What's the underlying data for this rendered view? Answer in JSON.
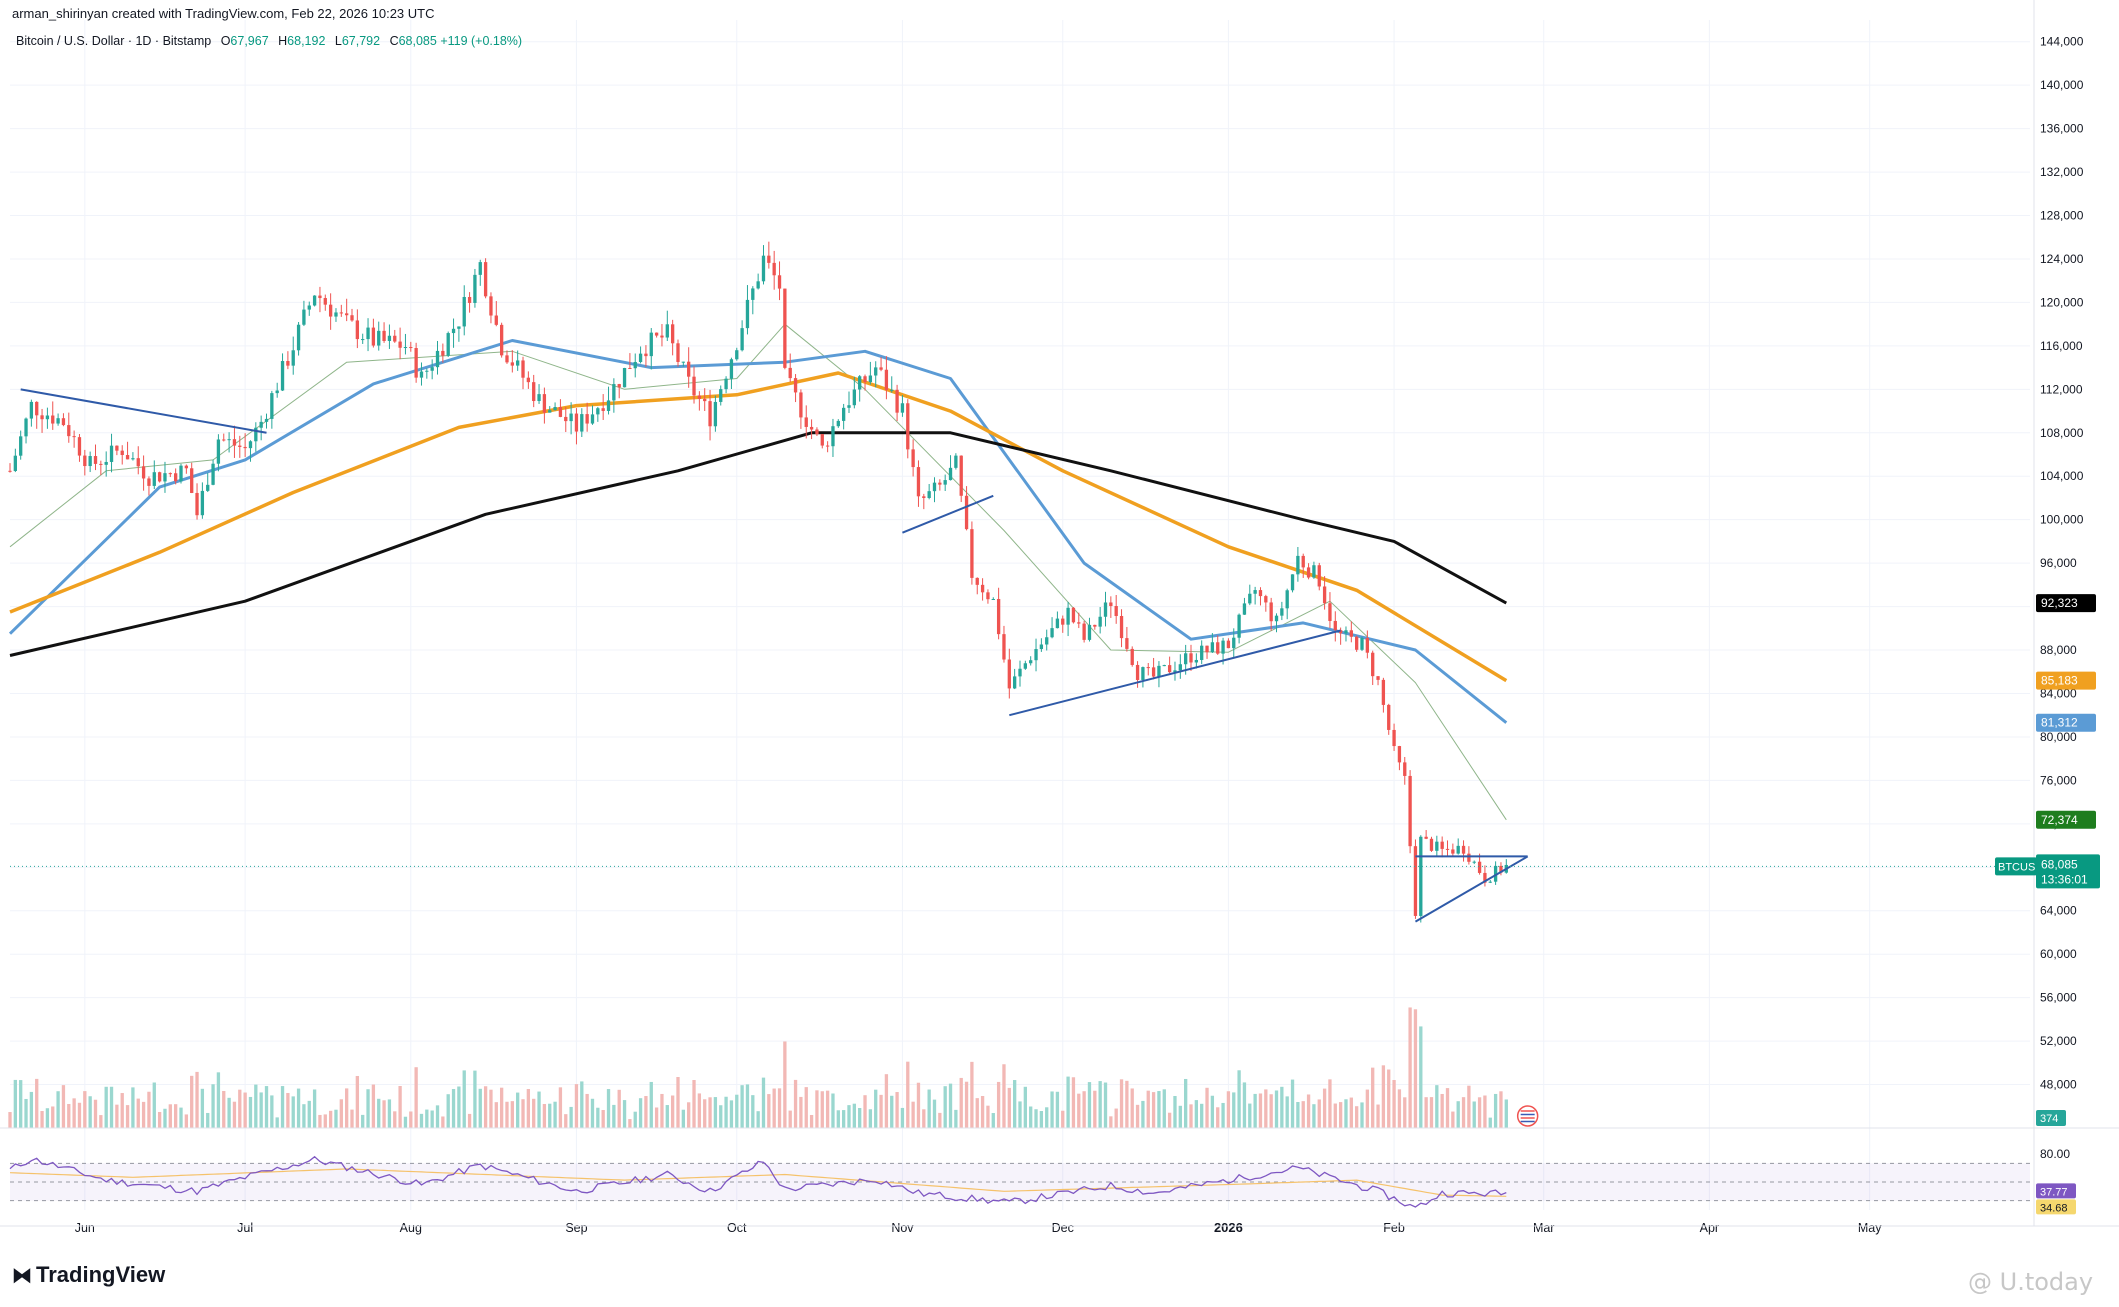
{
  "header": {
    "credit": "arman_shirinyan created with TradingView.com, Feb 22, 2026 10:23 UTC",
    "instrument": "Bitcoin / U.S. Dollar · 1D · Bitstamp",
    "o_label": "O",
    "o_value": "67,967",
    "h_label": "H",
    "h_value": "68,192",
    "l_label": "L",
    "l_value": "67,792",
    "c_label": "C",
    "c_value": "68,085",
    "change": "+119 (+0.18%)"
  },
  "branding": {
    "logo_text": "TradingView",
    "watermark": "@ U.today"
  },
  "colors": {
    "up": "#26a69a",
    "down": "#ef5350",
    "vol_up": "#9ad7cf",
    "vol_down": "#f2b8b5",
    "ma20": "#8fb58a",
    "ma50": "#5b9bd5",
    "ma100": "#f0a020",
    "ma200": "#111111",
    "trendline": "#2f5aa8",
    "rsi": "#7e57c2",
    "rsi_ma": "#f5c26b"
  },
  "chart_data": {
    "type": "candlestick",
    "title": "Bitcoin / U.S. Dollar · 1D · Bitstamp",
    "price_ylim": [
      44000,
      146000
    ],
    "price_ticks": [
      "48,000",
      "52,000",
      "56,000",
      "60,000",
      "64,000",
      "68,000",
      "72,000",
      "76,000",
      "80,000",
      "84,000",
      "88,000",
      "92,000",
      "96,000",
      "100,000",
      "104,000",
      "108,000",
      "112,000",
      "116,000",
      "120,000",
      "124,000",
      "128,000",
      "132,000",
      "136,000",
      "140,000",
      "144,000"
    ],
    "x_ticks": [
      "Jun",
      "Jul",
      "Aug",
      "Sep",
      "Oct",
      "Nov",
      "Dec",
      "2026",
      "Feb",
      "Mar",
      "Apr",
      "May"
    ],
    "x_range": [
      "2025-05-18",
      "2026-05-31"
    ],
    "last_date": "2026-02-22",
    "price_anchors": [
      [
        "2025-05-18",
        104500
      ],
      [
        "2025-05-22",
        110500
      ],
      [
        "2025-05-28",
        109000
      ],
      [
        "2025-06-02",
        105000
      ],
      [
        "2025-06-08",
        106500
      ],
      [
        "2025-06-13",
        104000
      ],
      [
        "2025-06-20",
        104500
      ],
      [
        "2025-06-22",
        100500
      ],
      [
        "2025-06-26",
        107500
      ],
      [
        "2025-07-01",
        106500
      ],
      [
        "2025-07-04",
        109000
      ],
      [
        "2025-07-10",
        116000
      ],
      [
        "2025-07-14",
        121000
      ],
      [
        "2025-07-20",
        118000
      ],
      [
        "2025-07-25",
        116500
      ],
      [
        "2025-07-31",
        116000
      ],
      [
        "2025-08-03",
        113000
      ],
      [
        "2025-08-10",
        118500
      ],
      [
        "2025-08-14",
        123500
      ],
      [
        "2025-08-18",
        116000
      ],
      [
        "2025-08-25",
        111000
      ],
      [
        "2025-09-01",
        108500
      ],
      [
        "2025-09-07",
        111500
      ],
      [
        "2025-09-13",
        115800
      ],
      [
        "2025-09-18",
        117000
      ],
      [
        "2025-09-22",
        112500
      ],
      [
        "2025-09-26",
        109500
      ],
      [
        "2025-10-01",
        116500
      ],
      [
        "2025-10-06",
        124000
      ],
      [
        "2025-10-09",
        121500
      ],
      [
        "2025-10-10",
        113000
      ],
      [
        "2025-10-17",
        106500
      ],
      [
        "2025-10-21",
        110500
      ],
      [
        "2025-10-27",
        114000
      ],
      [
        "2025-11-01",
        110000
      ],
      [
        "2025-11-04",
        101500
      ],
      [
        "2025-11-08",
        103000
      ],
      [
        "2025-11-11",
        105000
      ],
      [
        "2025-11-14",
        95000
      ],
      [
        "2025-11-18",
        92500
      ],
      [
        "2025-11-21",
        84500
      ],
      [
        "2025-11-25",
        87500
      ],
      [
        "2025-12-02",
        91500
      ],
      [
        "2025-12-05",
        89000
      ],
      [
        "2025-12-10",
        92500
      ],
      [
        "2025-12-15",
        86000
      ],
      [
        "2025-12-18",
        85500
      ],
      [
        "2025-12-25",
        87500
      ],
      [
        "2026-01-01",
        88500
      ],
      [
        "2026-01-06",
        93500
      ],
      [
        "2026-01-10",
        90500
      ],
      [
        "2026-01-14",
        96500
      ],
      [
        "2026-01-18",
        94500
      ],
      [
        "2026-01-21",
        89500
      ],
      [
        "2026-01-26",
        88500
      ],
      [
        "2026-01-29",
        85000
      ],
      [
        "2026-02-01",
        78500
      ],
      [
        "2026-02-03",
        76000
      ],
      [
        "2026-02-05",
        64000
      ],
      [
        "2026-02-06",
        70500
      ],
      [
        "2026-02-10",
        69500
      ],
      [
        "2026-02-14",
        69800
      ],
      [
        "2026-02-18",
        67000
      ],
      [
        "2026-02-22",
        68085
      ]
    ],
    "ma_series": [
      {
        "period": 20,
        "last": "72,374",
        "points": [
          [
            "2025-05-18",
            97500
          ],
          [
            "2025-06-05",
            104500
          ],
          [
            "2025-06-25",
            105500
          ],
          [
            "2025-07-20",
            114500
          ],
          [
            "2025-08-20",
            115500
          ],
          [
            "2025-09-10",
            112000
          ],
          [
            "2025-10-01",
            113000
          ],
          [
            "2025-10-10",
            118000
          ],
          [
            "2025-10-25",
            112000
          ],
          [
            "2025-11-20",
            99000
          ],
          [
            "2025-12-10",
            88000
          ],
          [
            "2026-01-01",
            87800
          ],
          [
            "2026-01-20",
            92500
          ],
          [
            "2026-02-05",
            85000
          ],
          [
            "2026-02-22",
            72374
          ]
        ]
      },
      {
        "period": 50,
        "last": "81,312",
        "points": [
          [
            "2025-05-18",
            89500
          ],
          [
            "2025-06-15",
            103000
          ],
          [
            "2025-07-01",
            105500
          ],
          [
            "2025-07-25",
            112500
          ],
          [
            "2025-08-20",
            116500
          ],
          [
            "2025-09-15",
            114000
          ],
          [
            "2025-10-10",
            114500
          ],
          [
            "2025-10-25",
            115500
          ],
          [
            "2025-11-10",
            113000
          ],
          [
            "2025-12-05",
            96000
          ],
          [
            "2025-12-25",
            89000
          ],
          [
            "2026-01-15",
            90500
          ],
          [
            "2026-02-05",
            88000
          ],
          [
            "2026-02-22",
            81312
          ]
        ]
      },
      {
        "period": 100,
        "last": "85,183",
        "points": [
          [
            "2025-05-18",
            91500
          ],
          [
            "2025-06-15",
            97000
          ],
          [
            "2025-07-10",
            102500
          ],
          [
            "2025-08-10",
            108500
          ],
          [
            "2025-09-01",
            110500
          ],
          [
            "2025-10-01",
            111500
          ],
          [
            "2025-10-20",
            113500
          ],
          [
            "2025-11-10",
            110000
          ],
          [
            "2025-12-01",
            104500
          ],
          [
            "2026-01-01",
            97500
          ],
          [
            "2026-01-25",
            93500
          ],
          [
            "2026-02-22",
            85183
          ]
        ]
      },
      {
        "period": 200,
        "last": "92,323",
        "points": [
          [
            "2025-05-18",
            87500
          ],
          [
            "2025-07-01",
            92500
          ],
          [
            "2025-08-15",
            100500
          ],
          [
            "2025-09-20",
            104500
          ],
          [
            "2025-10-15",
            108000
          ],
          [
            "2025-11-10",
            108000
          ],
          [
            "2025-12-10",
            104500
          ],
          [
            "2026-01-15",
            100000
          ],
          [
            "2026-02-01",
            98000
          ],
          [
            "2026-02-22",
            92323
          ]
        ]
      }
    ],
    "price_labels": [
      {
        "text": "92,323",
        "value": 92323,
        "color": "#000000"
      },
      {
        "text": "85,183",
        "value": 85183,
        "color": "#f0a020"
      },
      {
        "text": "81,312",
        "value": 81312,
        "color": "#5b9bd5"
      },
      {
        "text": "72,374",
        "value": 72374,
        "color": "#1e7d1e"
      }
    ],
    "current": {
      "symbol": "BTCUSD",
      "price": "68,085",
      "countdown": "13:36:01",
      "value": 68085
    },
    "trendlines": [
      {
        "from": [
          "2025-05-20",
          112000
        ],
        "to": [
          "2025-07-05",
          108000
        ]
      },
      {
        "from": [
          "2025-11-01",
          98800
        ],
        "to": [
          "2025-11-18",
          102200
        ]
      },
      {
        "from": [
          "2025-11-21",
          82000
        ],
        "to": [
          "2026-01-22",
          89800
        ]
      },
      {
        "from": [
          "2026-02-05",
          69000
        ],
        "to": [
          "2026-02-26",
          69000
        ]
      },
      {
        "from": [
          "2026-02-05",
          63000
        ],
        "to": [
          "2026-02-26",
          69000
        ]
      }
    ],
    "volume_last": "374",
    "rsi": {
      "ylim": [
        20,
        95
      ],
      "levels": [
        70,
        50,
        30
      ],
      "level_label": "80.00",
      "last_rsi": "37.77",
      "last_ma": "34.68",
      "anchors": [
        [
          "2025-05-18",
          63
        ],
        [
          "2025-05-22",
          75
        ],
        [
          "2025-06-05",
          52
        ],
        [
          "2025-06-22",
          40
        ],
        [
          "2025-07-01",
          55
        ],
        [
          "2025-07-14",
          74
        ],
        [
          "2025-08-03",
          47
        ],
        [
          "2025-08-14",
          68
        ],
        [
          "2025-09-01",
          40
        ],
        [
          "2025-09-18",
          58
        ],
        [
          "2025-09-26",
          40
        ],
        [
          "2025-10-06",
          72
        ],
        [
          "2025-10-10",
          42
        ],
        [
          "2025-10-27",
          53
        ],
        [
          "2025-11-04",
          38
        ],
        [
          "2025-11-21",
          28
        ],
        [
          "2025-12-10",
          46
        ],
        [
          "2025-12-18",
          38
        ],
        [
          "2026-01-14",
          65
        ],
        [
          "2026-01-29",
          40
        ],
        [
          "2026-02-05",
          22
        ],
        [
          "2026-02-10",
          38
        ],
        [
          "2026-02-22",
          37.77
        ]
      ],
      "ma_anchors": [
        [
          "2025-05-18",
          60
        ],
        [
          "2025-06-10",
          55
        ],
        [
          "2025-07-20",
          64
        ],
        [
          "2025-09-10",
          52
        ],
        [
          "2025-10-10",
          58
        ],
        [
          "2025-11-20",
          40
        ],
        [
          "2026-01-05",
          48
        ],
        [
          "2026-01-25",
          52
        ],
        [
          "2026-02-10",
          36
        ],
        [
          "2026-02-22",
          34.68
        ]
      ]
    }
  }
}
